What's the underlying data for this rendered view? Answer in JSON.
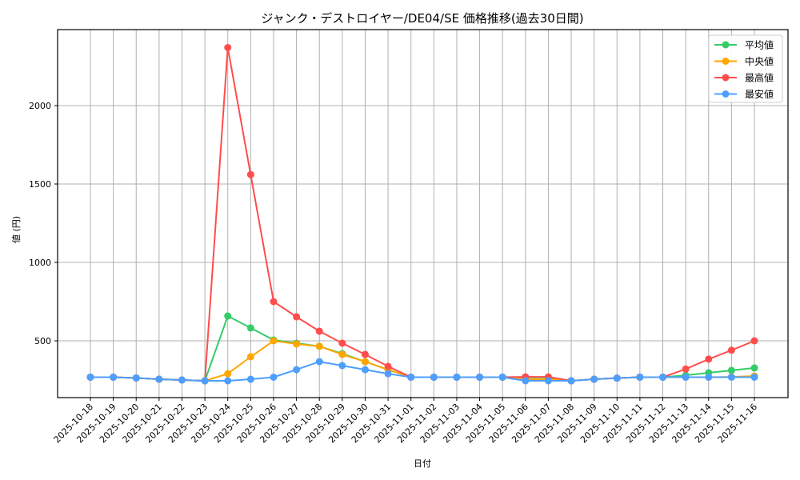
{
  "chart_data": {
    "type": "line",
    "title": "ジャンク・デストロイヤー/DE04/SE 価格推移(過去30日間)",
    "xlabel": "日付",
    "ylabel": "値 (円)",
    "ylim": [
      140,
      2470
    ],
    "yticks": [
      500,
      1000,
      1500,
      2000
    ],
    "grid": true,
    "legend_position": "upper right",
    "categories": [
      "2025-10-18",
      "2025-10-19",
      "2025-10-20",
      "2025-10-21",
      "2025-10-22",
      "2025-10-23",
      "2025-10-24",
      "2025-10-25",
      "2025-10-26",
      "2025-10-27",
      "2025-10-28",
      "2025-10-29",
      "2025-10-30",
      "2025-10-31",
      "2025-11-01",
      "2025-11-02",
      "2025-11-03",
      "2025-11-04",
      "2025-11-05",
      "2025-11-06",
      "2025-11-07",
      "2025-11-08",
      "2025-11-09",
      "2025-11-10",
      "2025-11-11",
      "2025-11-12",
      "2025-11-13",
      "2025-11-14",
      "2025-11-15",
      "2025-11-16"
    ],
    "series": [
      {
        "name": "平均値",
        "color": "#33cc66",
        "values": [
          268,
          268,
          263,
          255,
          250,
          245,
          658,
          582,
          505,
          485,
          465,
          418,
          367,
          316,
          268,
          268,
          268,
          268,
          268,
          258,
          258,
          245,
          255,
          262,
          268,
          268,
          280,
          296,
          311,
          327
        ]
      },
      {
        "name": "中央値",
        "color": "#ffa500",
        "values": [
          268,
          268,
          263,
          255,
          250,
          245,
          290,
          398,
          500,
          480,
          465,
          413,
          367,
          316,
          268,
          268,
          268,
          268,
          268,
          255,
          255,
          245,
          255,
          262,
          268,
          268,
          268,
          268,
          270,
          275
        ]
      },
      {
        "name": "最高値",
        "color": "#ff4d4d",
        "values": [
          268,
          268,
          263,
          255,
          250,
          245,
          2370,
          1560,
          750,
          653,
          561,
          485,
          413,
          337,
          268,
          268,
          268,
          268,
          268,
          270,
          270,
          245,
          255,
          262,
          268,
          268,
          320,
          383,
          440,
          500
        ]
      },
      {
        "name": "最安値",
        "color": "#4d9fff",
        "values": [
          268,
          268,
          263,
          255,
          250,
          245,
          245,
          255,
          268,
          316,
          367,
          342,
          316,
          290,
          268,
          268,
          268,
          268,
          268,
          245,
          245,
          245,
          255,
          262,
          268,
          268,
          268,
          268,
          268,
          268
        ]
      }
    ]
  }
}
